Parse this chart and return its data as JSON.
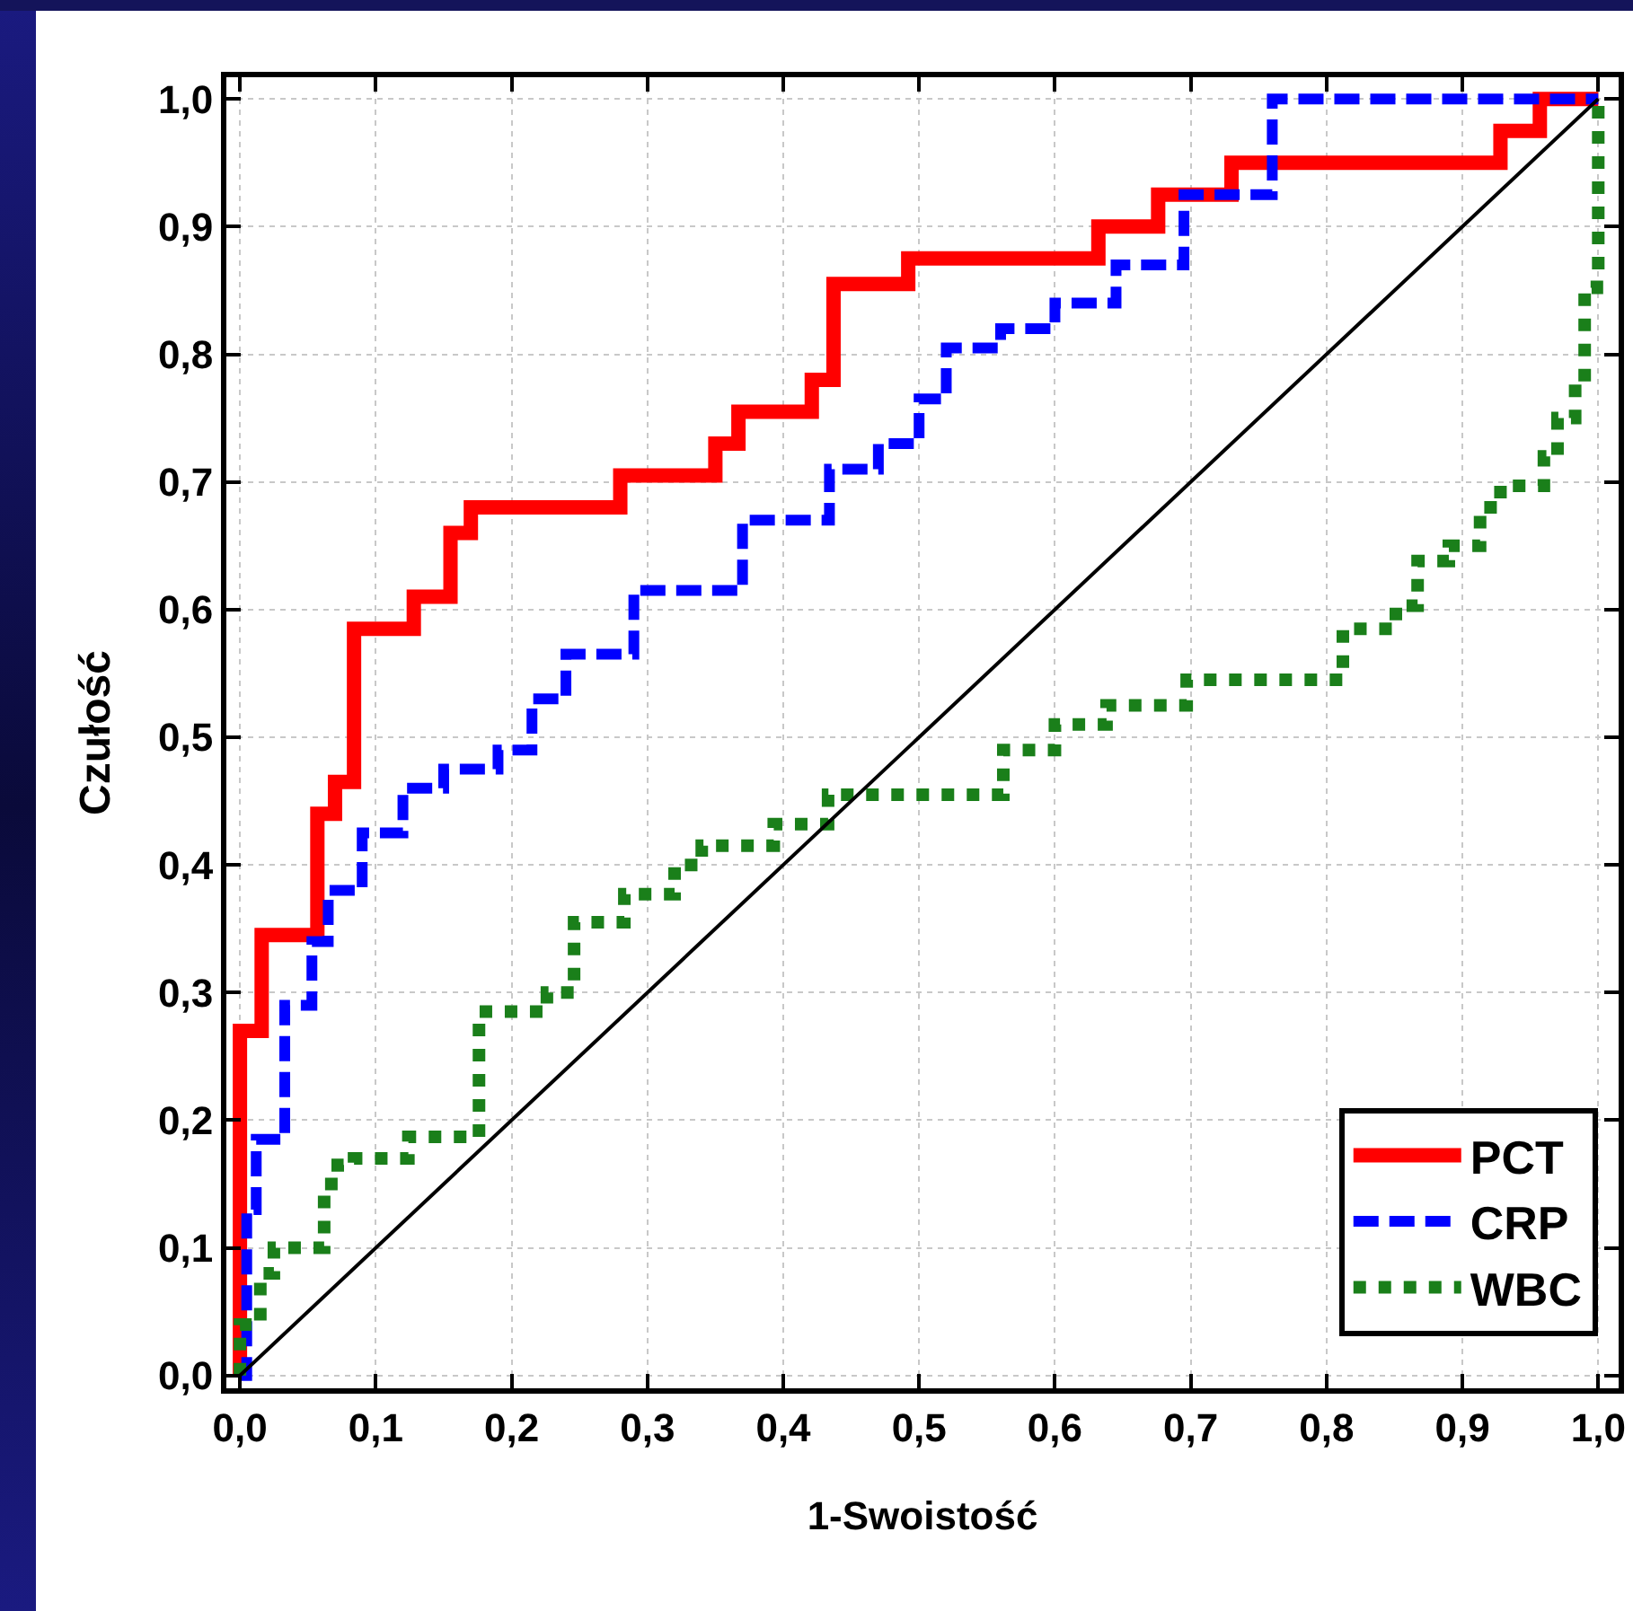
{
  "chart_data": {
    "type": "step",
    "xlabel": "1-Swoistość",
    "ylabel": "Czułość",
    "xlim": [
      -0.01,
      1.015
    ],
    "ylim": [
      -0.01,
      1.017
    ],
    "xticks": [
      {
        "value": 0,
        "label": "0,0"
      },
      {
        "value": 0.1,
        "label": "0,1"
      },
      {
        "value": 0.2,
        "label": "0,2"
      },
      {
        "value": 0.3,
        "label": "0,3"
      },
      {
        "value": 0.4,
        "label": "0,4"
      },
      {
        "value": 0.5,
        "label": "0,5"
      },
      {
        "value": 0.6,
        "label": "0,6"
      },
      {
        "value": 0.7,
        "label": "0,7"
      },
      {
        "value": 0.8,
        "label": "0,8"
      },
      {
        "value": 0.9,
        "label": "0,9"
      },
      {
        "value": 1,
        "label": "1,0"
      }
    ],
    "yticks": [
      {
        "value": 0,
        "label": "0,0"
      },
      {
        "value": 0.1,
        "label": "0,1"
      },
      {
        "value": 0.2,
        "label": "0,2"
      },
      {
        "value": 0.3,
        "label": "0,3"
      },
      {
        "value": 0.4,
        "label": "0,4"
      },
      {
        "value": 0.5,
        "label": "0,5"
      },
      {
        "value": 0.6,
        "label": "0,6"
      },
      {
        "value": 0.7,
        "label": "0,7"
      },
      {
        "value": 0.8,
        "label": "0,8"
      },
      {
        "value": 0.9,
        "label": "0,9"
      },
      {
        "value": 1,
        "label": "1,0"
      }
    ],
    "grid": true,
    "legend": "bottom right",
    "series": [
      {
        "name": "PCT",
        "color": "#ff0000",
        "line_style": "solid",
        "x": [
          0,
          0,
          0.016,
          0.057,
          0.07,
          0.084,
          0.128,
          0.155,
          0.17,
          0.28,
          0.35,
          0.367,
          0.421,
          0.437,
          0.492,
          0.632,
          0.676,
          0.73,
          0.928,
          0.957,
          1.0
        ],
        "values": [
          0,
          0.27,
          0.345,
          0.44,
          0.465,
          0.585,
          0.61,
          0.66,
          0.68,
          0.705,
          0.73,
          0.755,
          0.78,
          0.855,
          0.875,
          0.9,
          0.925,
          0.95,
          0.975,
          1.0,
          1.0
        ]
      },
      {
        "name": "CRP",
        "color": "#0000ff",
        "line_style": "dashed",
        "x": [
          0,
          0.005,
          0.012,
          0.033,
          0.053,
          0.065,
          0.09,
          0.12,
          0.15,
          0.19,
          0.215,
          0.24,
          0.29,
          0.37,
          0.434,
          0.47,
          0.5,
          0.52,
          0.56,
          0.6,
          0.645,
          0.695,
          0.76,
          1.0
        ],
        "values": [
          0,
          0.13,
          0.185,
          0.29,
          0.34,
          0.38,
          0.425,
          0.46,
          0.475,
          0.49,
          0.53,
          0.565,
          0.615,
          0.67,
          0.71,
          0.73,
          0.765,
          0.805,
          0.82,
          0.84,
          0.87,
          0.925,
          1.0,
          1.0
        ]
      },
      {
        "name": "WBC",
        "color": "#1a7f1a",
        "line_style": "dotted",
        "x": [
          0,
          0,
          0.015,
          0.025,
          0.062,
          0.072,
          0.084,
          0.124,
          0.176,
          0.226,
          0.246,
          0.283,
          0.32,
          0.34,
          0.393,
          0.433,
          0.562,
          0.6,
          0.638,
          0.697,
          0.812,
          0.851,
          0.867,
          0.89,
          0.913,
          0.928,
          0.96,
          0.97,
          0.983,
          0.99,
          0.999,
          1.0
        ],
        "values": [
          0,
          0.04,
          0.08,
          0.1,
          0.15,
          0.165,
          0.17,
          0.187,
          0.285,
          0.3,
          0.355,
          0.377,
          0.4,
          0.415,
          0.432,
          0.455,
          0.49,
          0.51,
          0.525,
          0.545,
          0.585,
          0.603,
          0.638,
          0.65,
          0.68,
          0.697,
          0.72,
          0.75,
          0.777,
          0.852,
          0.866,
          1.0
        ]
      },
      {
        "type": "line",
        "color": "#000000",
        "line_style": "solid",
        "x": [
          0,
          1
        ],
        "values": [
          0,
          1
        ]
      }
    ]
  }
}
